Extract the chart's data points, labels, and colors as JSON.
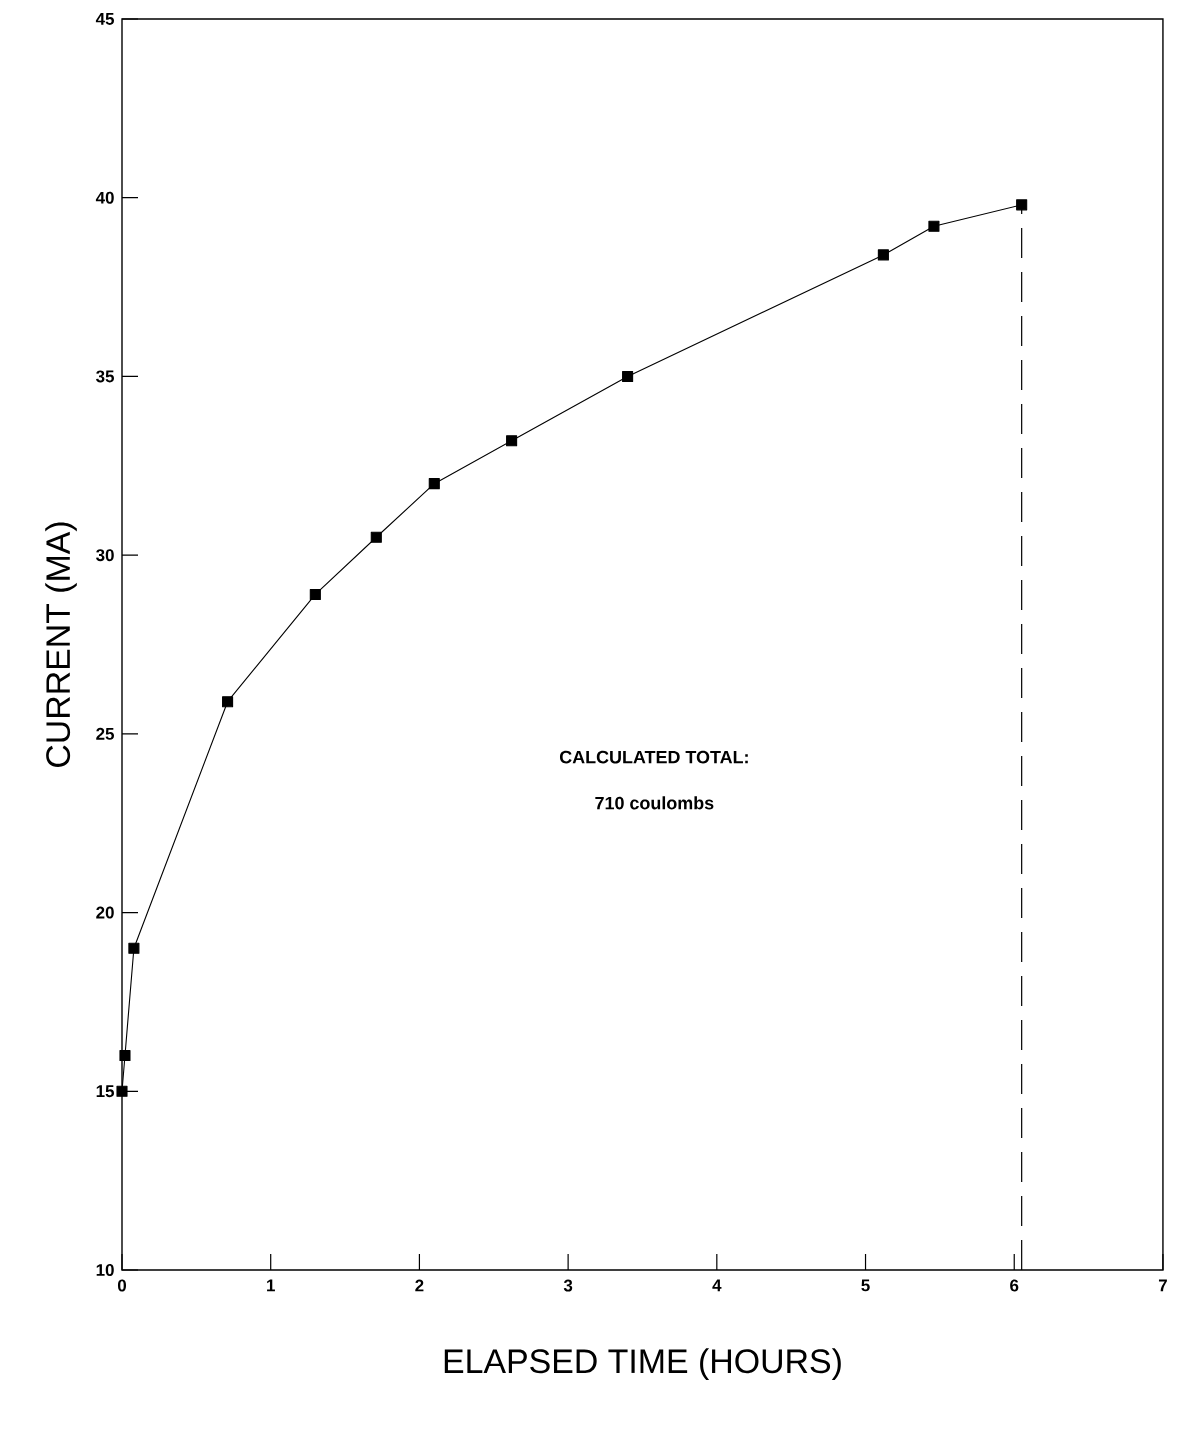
{
  "chart_data": {
    "type": "line",
    "xlabel": "ELAPSED TIME (HOURS)",
    "ylabel": "CURRENT (MA)",
    "x": [
      0,
      0.02,
      0.08,
      0.71,
      1.3,
      1.71,
      2.1,
      2.62,
      3.4,
      5.12,
      5.46,
      6.05
    ],
    "series": [
      {
        "color": "#000000",
        "values": [
          15,
          16,
          19,
          25.9,
          28.9,
          30.5,
          32.0,
          33.2,
          35.0,
          38.4,
          39.2,
          39.8
        ]
      }
    ],
    "xlim": [
      0,
      7
    ],
    "ylim": [
      10,
      45
    ],
    "xticks": [
      0,
      1,
      2,
      3,
      4,
      5,
      6,
      7
    ],
    "yticks": [
      10,
      15,
      20,
      25,
      30,
      35,
      40,
      45
    ],
    "marker": "square",
    "line_style": "solid",
    "ref_lines": [
      {
        "axis": "x",
        "value": 6.05,
        "line_style": "dashed",
        "color": "#000000"
      }
    ],
    "annotations": [
      "CALCULATED  TOTAL:",
      "710  coulombs"
    ]
  }
}
